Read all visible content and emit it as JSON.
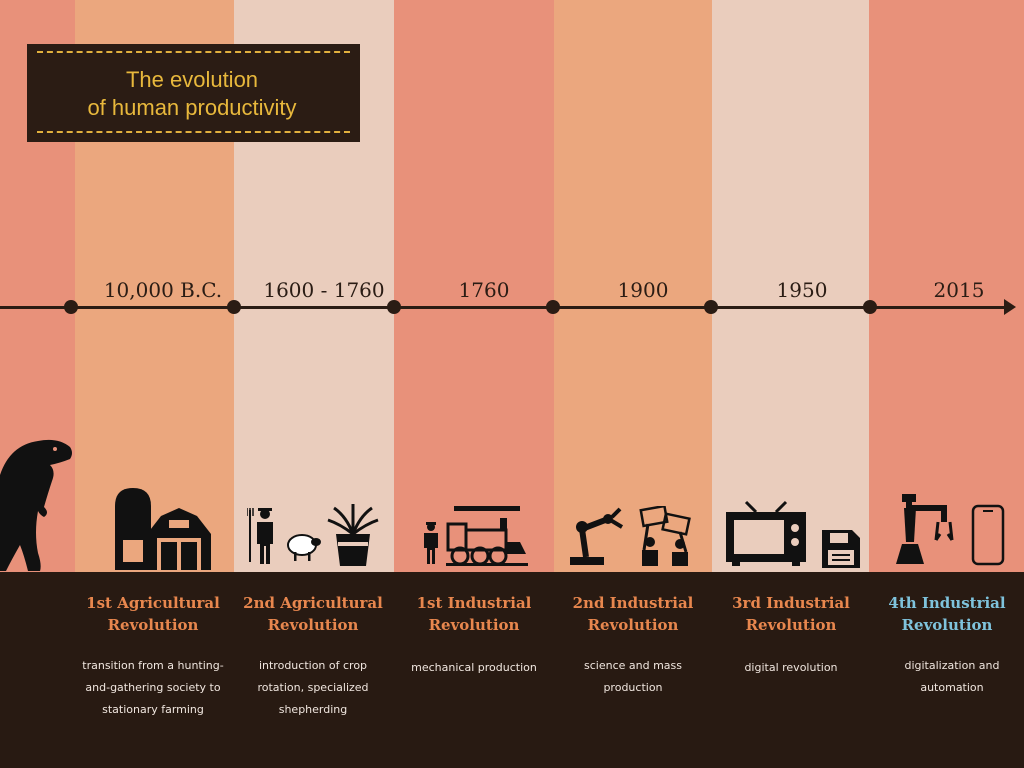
{
  "title": {
    "line1": "The evolution",
    "line2": "of human productivity"
  },
  "palette": {
    "salmon": "#E8917A",
    "peach": "#EBA77E",
    "pale": "#EACDBD",
    "dark": "#281A12",
    "accent": "#E8874E",
    "current": "#7FC3DC",
    "gold": "#E8B83C"
  },
  "eras": [
    {
      "year": "10,000 B.C.",
      "title1": "1st Agricultural",
      "title2": "Revolution",
      "desc1": "transition from a hunting-",
      "desc2": "and-gathering society to",
      "desc3": "stationary farming",
      "icons": [
        "silo-icon",
        "barn-icon"
      ]
    },
    {
      "year": "1600 - 1760",
      "title1": "2nd Agricultural",
      "title2": "Revolution",
      "desc1": "introduction of crop",
      "desc2": "rotation, specialized",
      "desc3": "shepherding",
      "icons": [
        "farmer-icon",
        "sheep-icon",
        "wheat-icon"
      ]
    },
    {
      "year": "1760",
      "title1": "1st Industrial",
      "title2": "Revolution",
      "desc1": "mechanical production",
      "desc2": "",
      "desc3": "",
      "icons": [
        "worker-icon",
        "locomotive-icon"
      ]
    },
    {
      "year": "1900",
      "title1": "2nd Industrial",
      "title2": "Revolution",
      "desc1": "science and mass",
      "desc2": "production",
      "desc3": "",
      "icons": [
        "robot-arm-icon",
        "protest-icon"
      ]
    },
    {
      "year": "1950",
      "title1": "3rd Industrial",
      "title2": "Revolution",
      "desc1": "digital revolution",
      "desc2": "",
      "desc3": "",
      "icons": [
        "tv-icon",
        "floppy-disk-icon"
      ]
    },
    {
      "year": "2015",
      "title1": "4th Industrial",
      "title2": "Revolution",
      "desc1": "digitalization and",
      "desc2": "automation",
      "desc3": "",
      "icons": [
        "industrial-robot-icon",
        "smartphone-icon"
      ]
    }
  ],
  "decor": [
    "dinosaur-icon"
  ]
}
